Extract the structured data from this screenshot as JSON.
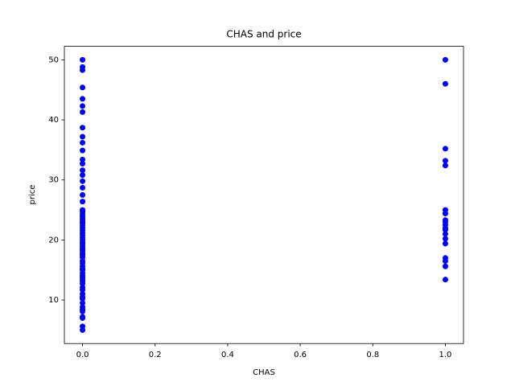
{
  "chart_data": {
    "type": "scatter",
    "title": "CHAS and price",
    "xlabel": "CHAS",
    "ylabel": "price",
    "color": "#0000ff",
    "x": [
      0,
      0,
      0,
      0,
      0,
      0,
      0,
      0,
      0,
      0,
      0,
      0,
      0,
      0,
      0,
      0,
      0,
      0,
      0,
      0,
      0,
      0,
      0,
      0,
      0,
      0,
      0,
      0,
      0,
      0,
      0,
      0,
      0,
      0,
      0,
      0,
      0,
      0,
      0,
      0,
      0,
      0,
      0,
      0,
      0,
      0,
      0,
      0,
      0,
      0,
      0,
      0,
      0,
      0,
      0,
      0,
      0,
      0,
      0,
      0,
      0,
      0,
      0,
      0,
      0,
      1,
      1,
      1,
      1,
      1,
      1,
      1,
      1,
      1,
      1,
      1,
      1,
      1,
      1,
      1,
      1,
      1,
      1,
      1
    ],
    "values": [
      5,
      5.6,
      7,
      7.2,
      8.1,
      8.4,
      8.8,
      9.5,
      10.2,
      10.5,
      11,
      11.7,
      12.1,
      12.7,
      13.1,
      13.4,
      13.8,
      14.1,
      14.5,
      15,
      15.2,
      15.6,
      16.1,
      16.5,
      17.1,
      17.5,
      17.8,
      18.2,
      18.5,
      18.9,
      19.3,
      19.6,
      20,
      20.4,
      20.8,
      21.2,
      21.6,
      22,
      22.4,
      22.8,
      23.1,
      23.5,
      23.9,
      24.3,
      24.7,
      25,
      26.4,
      27.5,
      28.7,
      29.8,
      30.8,
      31.6,
      32.7,
      33.4,
      34.9,
      36.2,
      37.2,
      38.7,
      41.3,
      42.3,
      43.5,
      45.4,
      48.3,
      48.8,
      50,
      50,
      46,
      35.2,
      33.2,
      32.4,
      25,
      24.4,
      23.3,
      23,
      22.5,
      22,
      21.7,
      21,
      20.2,
      19.4,
      17,
      16.5,
      15.6,
      13.4
    ],
    "xlim": [
      -0.05,
      1.05
    ],
    "ylim": [
      2.75,
      52.25
    ],
    "xticks": [
      {
        "value": 0,
        "label": "0.0"
      },
      {
        "value": 0.2,
        "label": "0.2"
      },
      {
        "value": 0.4,
        "label": "0.4"
      },
      {
        "value": 0.6,
        "label": "0.6"
      },
      {
        "value": 0.8,
        "label": "0.8"
      },
      {
        "value": 1,
        "label": "1.0"
      }
    ],
    "yticks": [
      10,
      20,
      30,
      40,
      50
    ]
  }
}
